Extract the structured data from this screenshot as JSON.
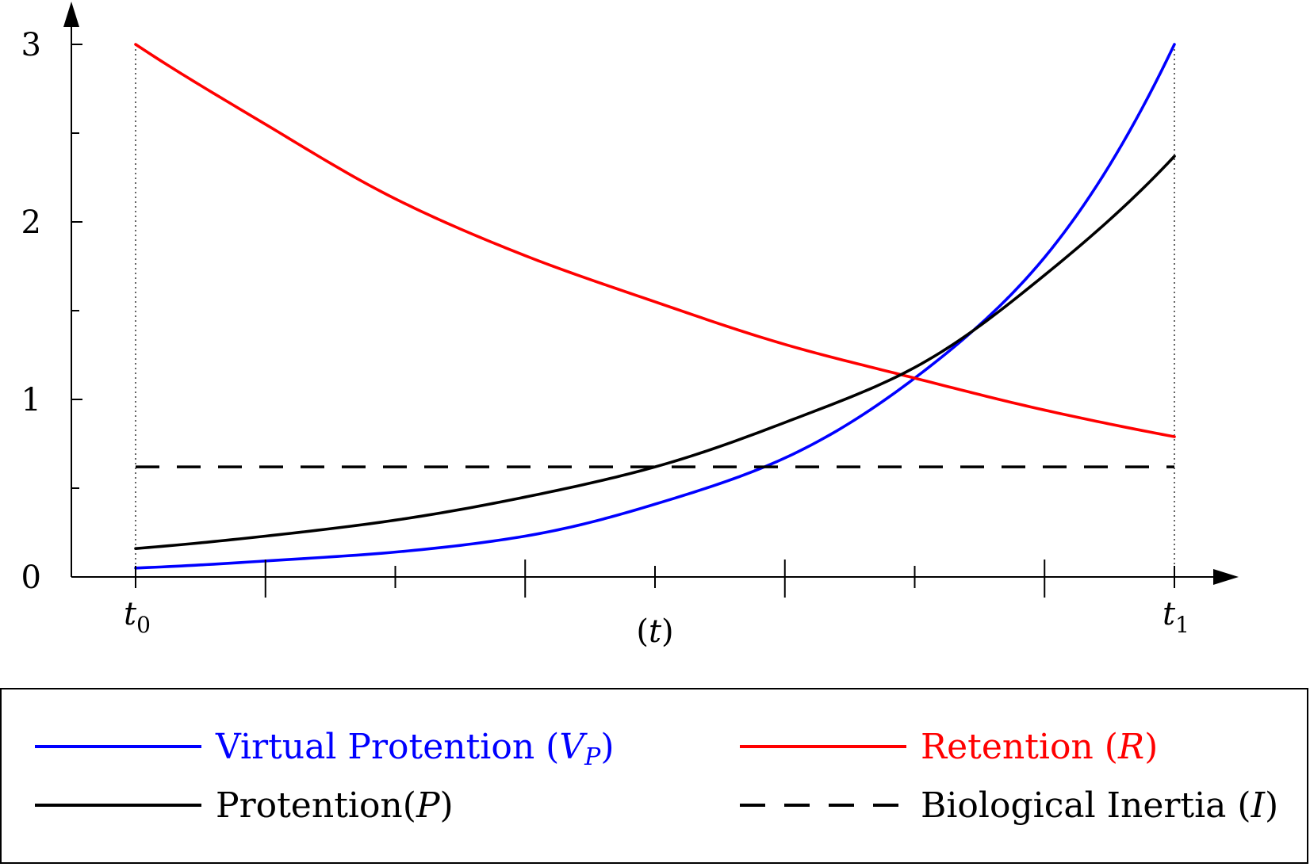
{
  "chart_data": {
    "type": "line",
    "title": "",
    "xlabel": "(t)",
    "ylabel": "",
    "x_ticks": {
      "start": {
        "base": "t",
        "sub": "0"
      },
      "end": {
        "base": "t",
        "sub": "1"
      }
    },
    "xlim": [
      0,
      1
    ],
    "ylim": [
      0,
      3
    ],
    "y_ticks": [
      "0",
      "1",
      "2",
      "3"
    ],
    "grid": false,
    "legend_position": "bottom",
    "series": [
      {
        "name": "Virtual Protention (V_P)",
        "label_main": "Virtual Protention (",
        "label_var": "V",
        "label_sub": "P",
        "label_close": ")",
        "color": "#0000ff",
        "style": "solid",
        "x": [
          0,
          0.125,
          0.25,
          0.375,
          0.5,
          0.625,
          0.75,
          0.875,
          1
        ],
        "y": [
          0.05,
          0.09,
          0.14,
          0.23,
          0.41,
          0.67,
          1.12,
          1.8,
          3.0
        ]
      },
      {
        "name": "Retention (R)",
        "label_main": "Retention (",
        "label_var": "R",
        "label_close": ")",
        "color": "#ff0000",
        "style": "solid",
        "x": [
          0,
          0.125,
          0.25,
          0.375,
          0.5,
          0.625,
          0.75,
          0.875,
          1
        ],
        "y": [
          3.0,
          2.55,
          2.13,
          1.81,
          1.55,
          1.31,
          1.12,
          0.94,
          0.79
        ]
      },
      {
        "name": "Protention(P)",
        "label_main": "Protention(",
        "label_var": "P",
        "label_close": ")",
        "color": "#000000",
        "style": "solid",
        "x": [
          0,
          0.125,
          0.25,
          0.375,
          0.5,
          0.625,
          0.75,
          0.875,
          1
        ],
        "y": [
          0.16,
          0.23,
          0.32,
          0.45,
          0.62,
          0.87,
          1.18,
          1.7,
          2.37
        ]
      },
      {
        "name": "Biological Inertia (I)",
        "label_main": "Biological Inertia (",
        "label_var": "I",
        "label_close": ")",
        "color": "#000000",
        "style": "dashed",
        "x": [
          0,
          1
        ],
        "y": [
          0.62,
          0.62
        ]
      }
    ]
  }
}
